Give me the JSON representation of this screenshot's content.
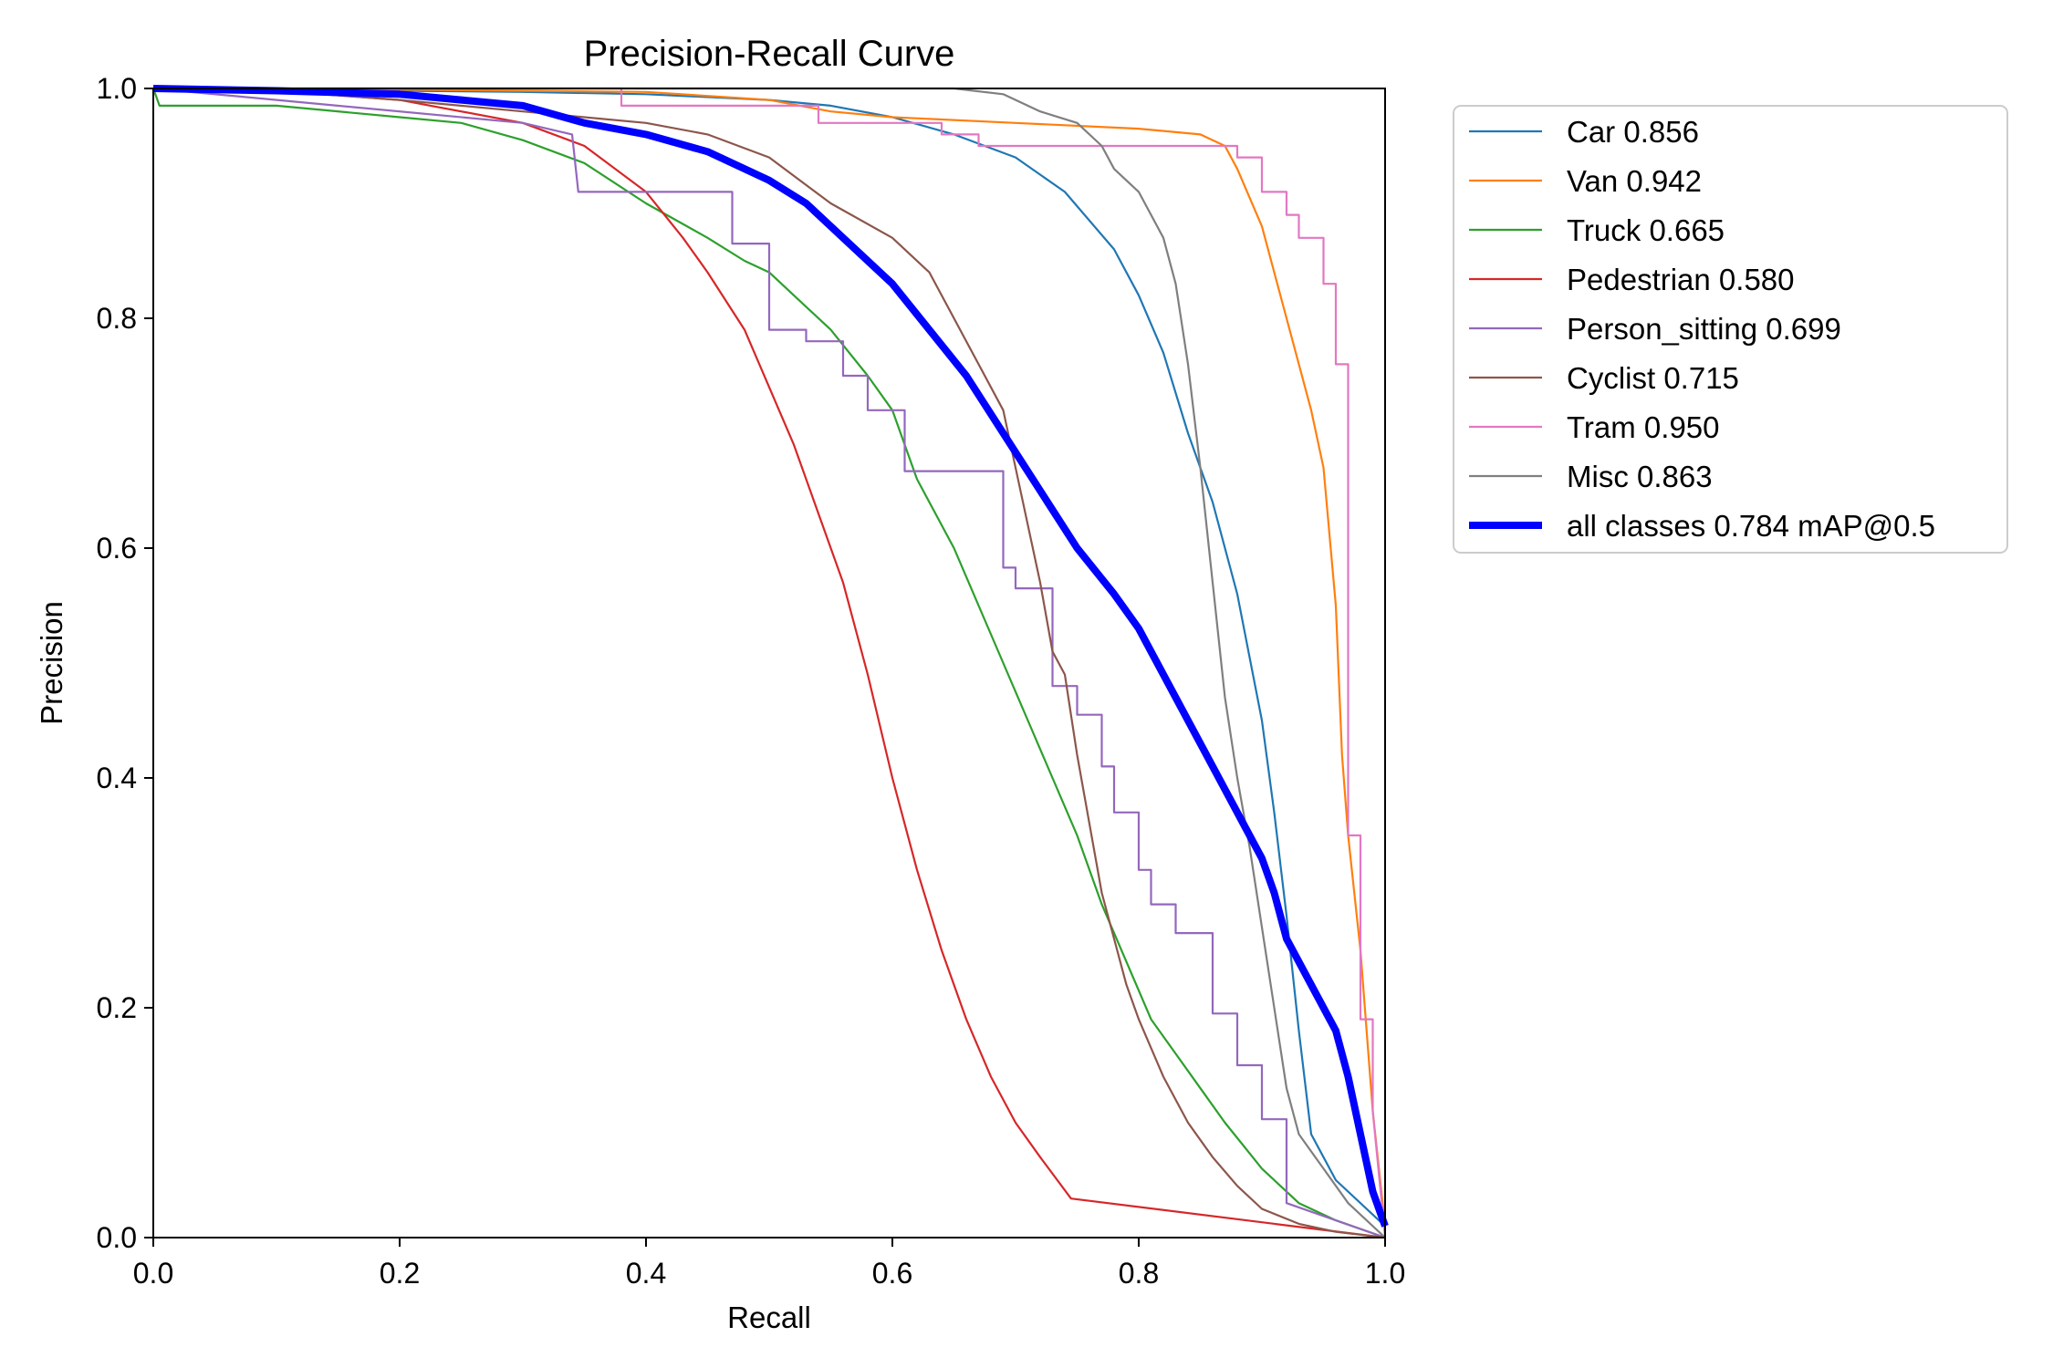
{
  "chart_data": {
    "type": "line",
    "title": "Precision-Recall Curve",
    "xlabel": "Recall",
    "ylabel": "Precision",
    "xlim": [
      0.0,
      1.0
    ],
    "ylim": [
      0.0,
      1.0
    ],
    "xticks": [
      "0.0",
      "0.2",
      "0.4",
      "0.6",
      "0.8",
      "1.0"
    ],
    "yticks": [
      "0.0",
      "0.2",
      "0.4",
      "0.6",
      "0.8",
      "1.0"
    ],
    "grid": false,
    "legend_position": "outside-right-top",
    "series": [
      {
        "name": "Car",
        "label": "Car 0.856",
        "color": "#1f77b4",
        "x": [
          0.0,
          0.1,
          0.2,
          0.3,
          0.4,
          0.5,
          0.55,
          0.6,
          0.65,
          0.7,
          0.74,
          0.78,
          0.8,
          0.82,
          0.84,
          0.86,
          0.88,
          0.9,
          0.91,
          0.92,
          0.93,
          0.94,
          0.95,
          0.96,
          1.0
        ],
        "y": [
          1.0,
          1.0,
          0.998,
          0.997,
          0.995,
          0.99,
          0.985,
          0.975,
          0.96,
          0.94,
          0.91,
          0.86,
          0.82,
          0.77,
          0.7,
          0.64,
          0.56,
          0.45,
          0.37,
          0.28,
          0.18,
          0.09,
          0.07,
          0.05,
          0.01
        ]
      },
      {
        "name": "Van",
        "label": "Van 0.942",
        "color": "#ff7f0e",
        "x": [
          0.0,
          0.1,
          0.3,
          0.4,
          0.5,
          0.55,
          0.6,
          0.7,
          0.8,
          0.85,
          0.87,
          0.88,
          0.9,
          0.91,
          0.92,
          0.93,
          0.94,
          0.95,
          0.96,
          0.965,
          0.97,
          0.98,
          0.99,
          1.0
        ],
        "y": [
          1.0,
          1.0,
          0.998,
          0.997,
          0.99,
          0.98,
          0.975,
          0.97,
          0.965,
          0.96,
          0.95,
          0.93,
          0.88,
          0.84,
          0.8,
          0.76,
          0.72,
          0.67,
          0.55,
          0.42,
          0.35,
          0.25,
          0.11,
          0.01
        ]
      },
      {
        "name": "Truck",
        "label": "Truck 0.665",
        "color": "#2ca02c",
        "x": [
          0.0,
          0.005,
          0.1,
          0.2,
          0.25,
          0.3,
          0.35,
          0.4,
          0.45,
          0.48,
          0.5,
          0.52,
          0.55,
          0.58,
          0.6,
          0.62,
          0.65,
          0.67,
          0.69,
          0.71,
          0.73,
          0.75,
          0.77,
          0.79,
          0.81,
          0.83,
          0.85,
          0.87,
          0.9,
          0.93,
          0.96,
          1.0
        ],
        "y": [
          1.0,
          0.985,
          0.985,
          0.975,
          0.97,
          0.955,
          0.935,
          0.9,
          0.87,
          0.85,
          0.84,
          0.82,
          0.79,
          0.75,
          0.72,
          0.66,
          0.6,
          0.55,
          0.5,
          0.45,
          0.4,
          0.35,
          0.29,
          0.24,
          0.19,
          0.16,
          0.13,
          0.1,
          0.06,
          0.03,
          0.015,
          0.0
        ]
      },
      {
        "name": "Pedestrian",
        "label": "Pedestrian 0.580",
        "color": "#d62728",
        "x": [
          0.0,
          0.1,
          0.2,
          0.3,
          0.35,
          0.4,
          0.43,
          0.45,
          0.48,
          0.5,
          0.52,
          0.54,
          0.56,
          0.58,
          0.6,
          0.62,
          0.64,
          0.66,
          0.68,
          0.7,
          0.72,
          0.745,
          1.0
        ],
        "y": [
          1.0,
          0.998,
          0.99,
          0.97,
          0.95,
          0.91,
          0.87,
          0.84,
          0.79,
          0.74,
          0.69,
          0.63,
          0.57,
          0.49,
          0.4,
          0.32,
          0.25,
          0.19,
          0.14,
          0.1,
          0.07,
          0.034,
          0.0
        ]
      },
      {
        "name": "Person_sitting",
        "label": "Person_sitting 0.699",
        "color": "#9467bd",
        "x": [
          0.0,
          0.3,
          0.34,
          0.345,
          0.47,
          0.47,
          0.5,
          0.5,
          0.53,
          0.53,
          0.56,
          0.56,
          0.58,
          0.58,
          0.61,
          0.61,
          0.65,
          0.65,
          0.69,
          0.69,
          0.7,
          0.7,
          0.73,
          0.73,
          0.75,
          0.75,
          0.77,
          0.77,
          0.78,
          0.78,
          0.8,
          0.8,
          0.81,
          0.81,
          0.83,
          0.83,
          0.86,
          0.86,
          0.88,
          0.88,
          0.9,
          0.9,
          0.92,
          0.92,
          1.0
        ],
        "y": [
          1.0,
          0.97,
          0.96,
          0.91,
          0.91,
          0.865,
          0.865,
          0.79,
          0.79,
          0.78,
          0.78,
          0.75,
          0.75,
          0.72,
          0.72,
          0.667,
          0.667,
          0.667,
          0.667,
          0.583,
          0.583,
          0.565,
          0.565,
          0.48,
          0.48,
          0.455,
          0.455,
          0.41,
          0.41,
          0.37,
          0.37,
          0.32,
          0.32,
          0.29,
          0.29,
          0.265,
          0.265,
          0.195,
          0.195,
          0.15,
          0.15,
          0.103,
          0.103,
          0.03,
          0.0
        ]
      },
      {
        "name": "Cyclist",
        "label": "Cyclist 0.715",
        "color": "#8c564b",
        "x": [
          0.0,
          0.1,
          0.2,
          0.3,
          0.4,
          0.45,
          0.5,
          0.55,
          0.6,
          0.63,
          0.65,
          0.67,
          0.69,
          0.7,
          0.71,
          0.72,
          0.73,
          0.74,
          0.75,
          0.76,
          0.77,
          0.78,
          0.79,
          0.8,
          0.82,
          0.84,
          0.86,
          0.88,
          0.9,
          0.93,
          0.96,
          1.0
        ],
        "y": [
          1.0,
          0.998,
          0.99,
          0.98,
          0.97,
          0.96,
          0.94,
          0.9,
          0.87,
          0.84,
          0.8,
          0.76,
          0.72,
          0.67,
          0.62,
          0.57,
          0.51,
          0.49,
          0.42,
          0.36,
          0.3,
          0.26,
          0.22,
          0.19,
          0.14,
          0.1,
          0.07,
          0.045,
          0.025,
          0.012,
          0.005,
          0.0
        ]
      },
      {
        "name": "Tram",
        "label": "Tram 0.950",
        "color": "#e377c2",
        "x": [
          0.0,
          0.38,
          0.38,
          0.54,
          0.54,
          0.64,
          0.64,
          0.67,
          0.67,
          0.88,
          0.88,
          0.9,
          0.9,
          0.92,
          0.92,
          0.93,
          0.93,
          0.95,
          0.95,
          0.96,
          0.96,
          0.97,
          0.97,
          0.98,
          0.98,
          0.99,
          0.99,
          1.0
        ],
        "y": [
          1.0,
          1.0,
          0.985,
          0.985,
          0.97,
          0.97,
          0.96,
          0.96,
          0.95,
          0.95,
          0.94,
          0.94,
          0.91,
          0.91,
          0.89,
          0.89,
          0.87,
          0.87,
          0.83,
          0.83,
          0.76,
          0.76,
          0.35,
          0.35,
          0.19,
          0.19,
          0.11,
          0.0
        ]
      },
      {
        "name": "Misc",
        "label": "Misc 0.863",
        "color": "#7f7f7f",
        "x": [
          0.0,
          0.5,
          0.65,
          0.69,
          0.72,
          0.75,
          0.77,
          0.78,
          0.8,
          0.82,
          0.83,
          0.84,
          0.85,
          0.86,
          0.87,
          0.88,
          0.89,
          0.9,
          0.91,
          0.92,
          0.93,
          0.95,
          0.97,
          1.0
        ],
        "y": [
          1.0,
          1.0,
          1.0,
          0.995,
          0.98,
          0.97,
          0.95,
          0.93,
          0.91,
          0.87,
          0.83,
          0.76,
          0.67,
          0.57,
          0.47,
          0.4,
          0.34,
          0.27,
          0.2,
          0.13,
          0.09,
          0.06,
          0.03,
          0.0
        ]
      },
      {
        "name": "all classes",
        "label": "all classes 0.784 mAP@0.5",
        "color": "#0000ff",
        "x": [
          0.0,
          0.1,
          0.2,
          0.25,
          0.3,
          0.35,
          0.4,
          0.45,
          0.5,
          0.53,
          0.56,
          0.6,
          0.63,
          0.66,
          0.69,
          0.72,
          0.75,
          0.78,
          0.8,
          0.82,
          0.84,
          0.86,
          0.88,
          0.9,
          0.91,
          0.92,
          0.94,
          0.96,
          0.97,
          0.98,
          0.99,
          1.0
        ],
        "y": [
          1.0,
          0.998,
          0.995,
          0.99,
          0.985,
          0.97,
          0.96,
          0.945,
          0.92,
          0.9,
          0.87,
          0.83,
          0.79,
          0.75,
          0.7,
          0.65,
          0.6,
          0.56,
          0.53,
          0.49,
          0.45,
          0.41,
          0.37,
          0.33,
          0.3,
          0.26,
          0.22,
          0.18,
          0.14,
          0.09,
          0.04,
          0.01
        ]
      }
    ]
  }
}
